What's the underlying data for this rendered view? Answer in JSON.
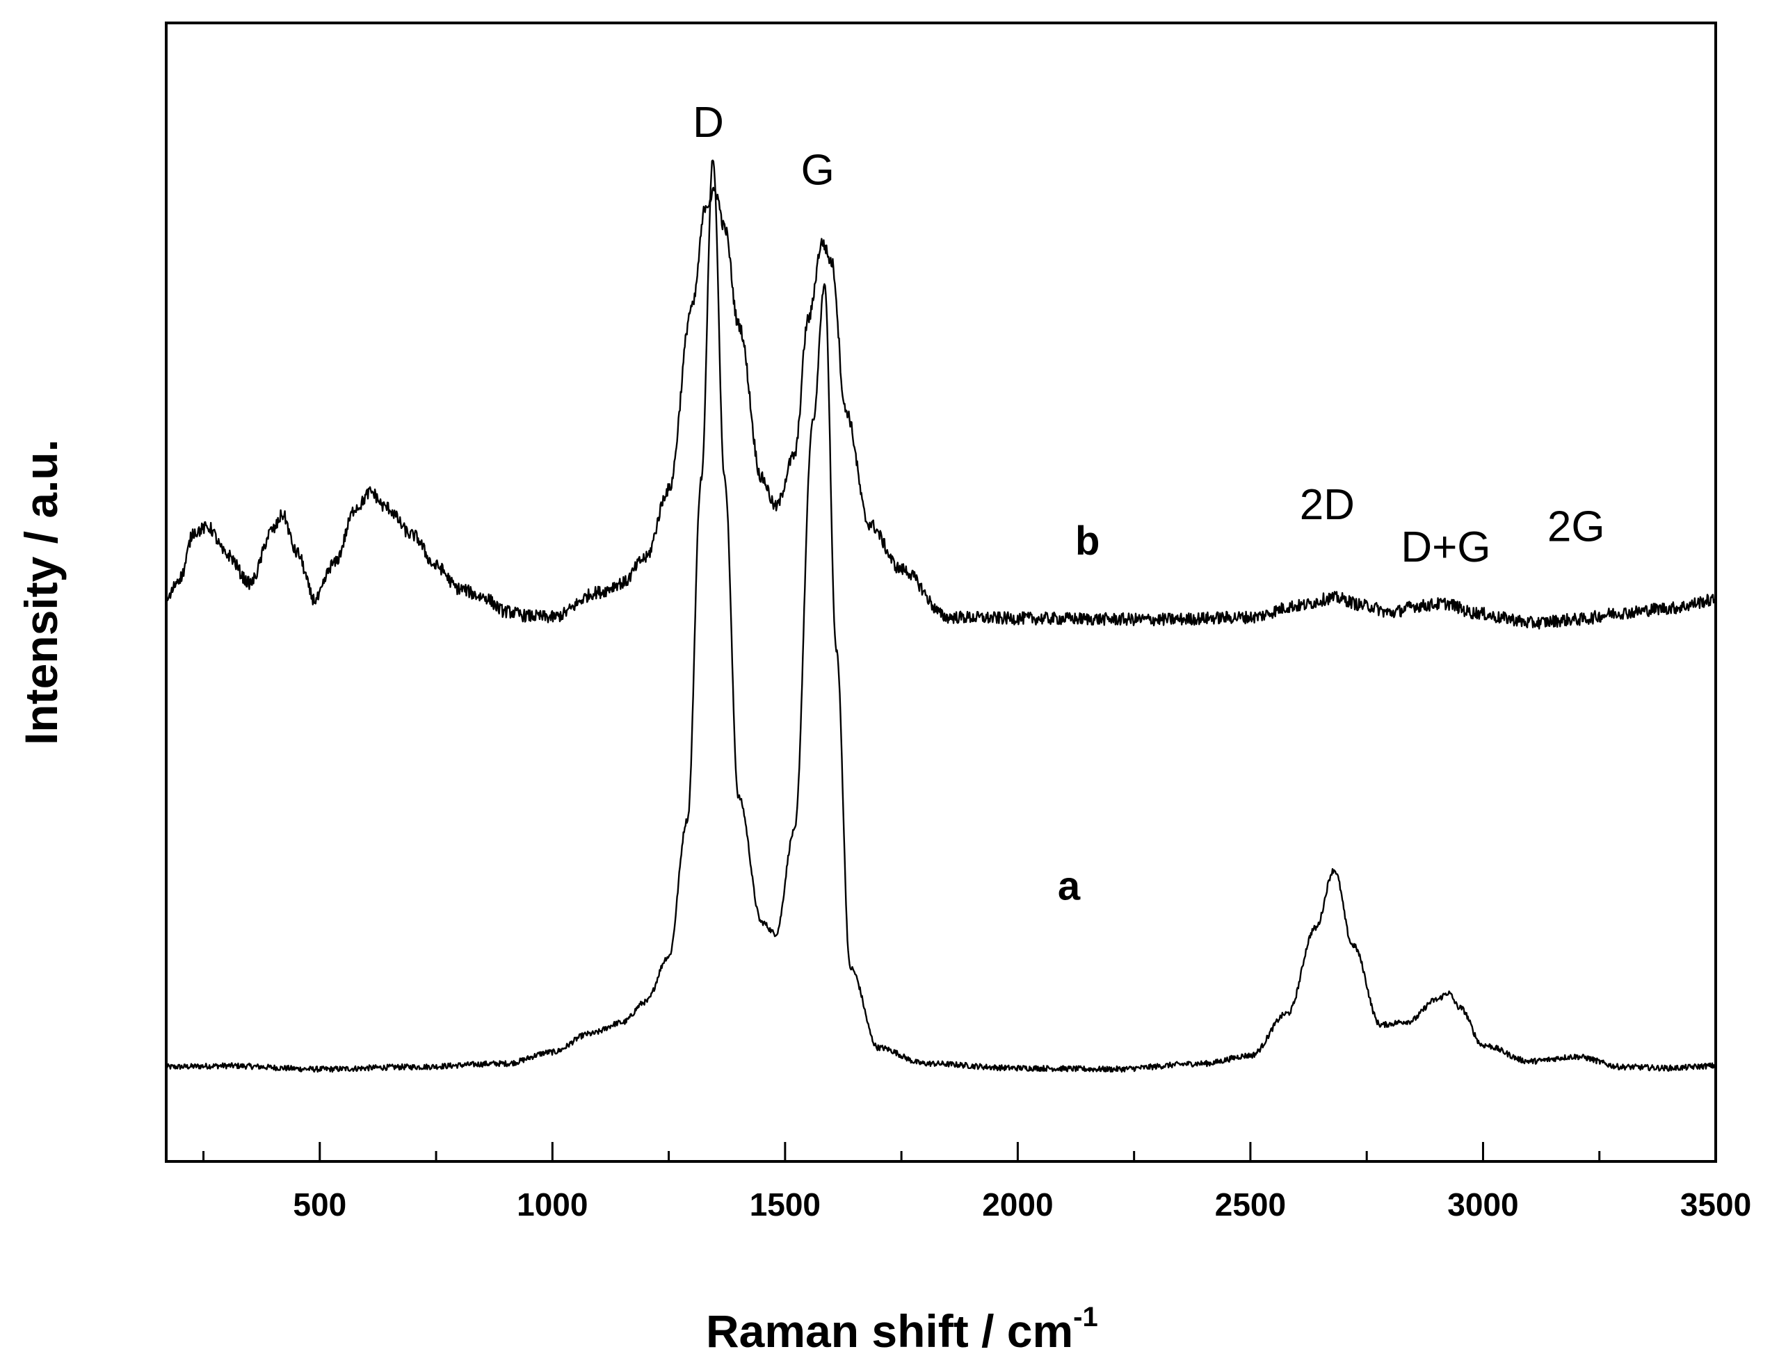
{
  "chart_data": {
    "type": "line",
    "title": "",
    "xlabel": "Raman shift / cm",
    "xlabel_superscript": "-1",
    "ylabel": "Intensity / a.u.",
    "xlim": [
      170,
      3500
    ],
    "ylim": [
      0,
      100
    ],
    "yticks_shown": false,
    "grid": false,
    "legend": "none",
    "xticks_major": [
      500,
      1000,
      1500,
      2000,
      2500,
      3000,
      3500
    ],
    "xtick_labels": [
      "500",
      "1000",
      "1500",
      "2000",
      "2500",
      "3000",
      "3500"
    ],
    "xticks_minor": [
      250,
      750,
      1250,
      1750,
      2250,
      2750,
      3250
    ],
    "series": [
      {
        "name": "a",
        "label_at": {
          "x": 2110,
          "y": 23
        },
        "x": [
          170,
          300,
          500,
          700,
          900,
          1000,
          1080,
          1150,
          1200,
          1250,
          1290,
          1320,
          1345,
          1370,
          1400,
          1450,
          1480,
          1520,
          1560,
          1585,
          1610,
          1640,
          1700,
          1800,
          2000,
          2200,
          2400,
          2500,
          2580,
          2640,
          2680,
          2720,
          2780,
          2840,
          2900,
          2925,
          2950,
          3000,
          3100,
          3200,
          3300,
          3400,
          3500
        ],
        "y": [
          8.3,
          8.4,
          8.1,
          8.3,
          8.6,
          9.6,
          11.2,
          12.2,
          14.0,
          18.0,
          30.0,
          60.0,
          88.2,
          60.0,
          32.0,
          21.0,
          20.0,
          29.0,
          65.0,
          77.0,
          45.0,
          17.0,
          10.0,
          8.6,
          8.2,
          8.1,
          8.6,
          9.3,
          13.0,
          20.5,
          25.6,
          19.0,
          12.0,
          12.3,
          14.2,
          14.8,
          13.5,
          10.2,
          8.8,
          9.2,
          8.3,
          8.2,
          8.4
        ],
        "noise": 0.25
      },
      {
        "name": "b",
        "label_at": {
          "x": 2150,
          "y": 53.3
        },
        "x": [
          170,
          200,
          230,
          260,
          300,
          350,
          400,
          420,
          450,
          490,
          530,
          580,
          610,
          640,
          700,
          750,
          800,
          850,
          900,
          950,
          1000,
          1100,
          1150,
          1200,
          1250,
          1300,
          1330,
          1350,
          1370,
          1400,
          1450,
          1480,
          1520,
          1550,
          1580,
          1600,
          1630,
          1680,
          1750,
          1850,
          2000,
          2300,
          2500,
          2600,
          2680,
          2750,
          2800,
          2860,
          2920,
          2980,
          3050,
          3100,
          3200,
          3300,
          3400,
          3500
        ],
        "y": [
          49.3,
          51.3,
          55.3,
          55.7,
          53.3,
          50.8,
          55.5,
          56.8,
          53.5,
          49.3,
          52.5,
          57.5,
          58.8,
          57.5,
          55.0,
          52.3,
          50.3,
          49.6,
          48.3,
          47.9,
          47.8,
          50.0,
          50.8,
          53.0,
          59.0,
          75.0,
          84.0,
          85.2,
          82.0,
          73.5,
          60.0,
          57.5,
          62.0,
          74.0,
          80.7,
          79.0,
          66.0,
          56.0,
          52.0,
          47.8,
          47.7,
          47.6,
          47.8,
          48.8,
          49.5,
          48.8,
          48.2,
          48.8,
          49.0,
          48.2,
          47.7,
          47.3,
          47.6,
          48.2,
          48.6,
          49.3
        ],
        "noise": 0.55
      }
    ],
    "annotations": [
      {
        "text": "D",
        "x": 1335,
        "y": 90
      },
      {
        "text": "G",
        "x": 1570,
        "y": 85.8
      },
      {
        "text": "2D",
        "x": 2665,
        "y": 56.4
      },
      {
        "text": "D+G",
        "x": 2920,
        "y": 52.7
      },
      {
        "text": "2G",
        "x": 3200,
        "y": 54.5
      }
    ]
  }
}
